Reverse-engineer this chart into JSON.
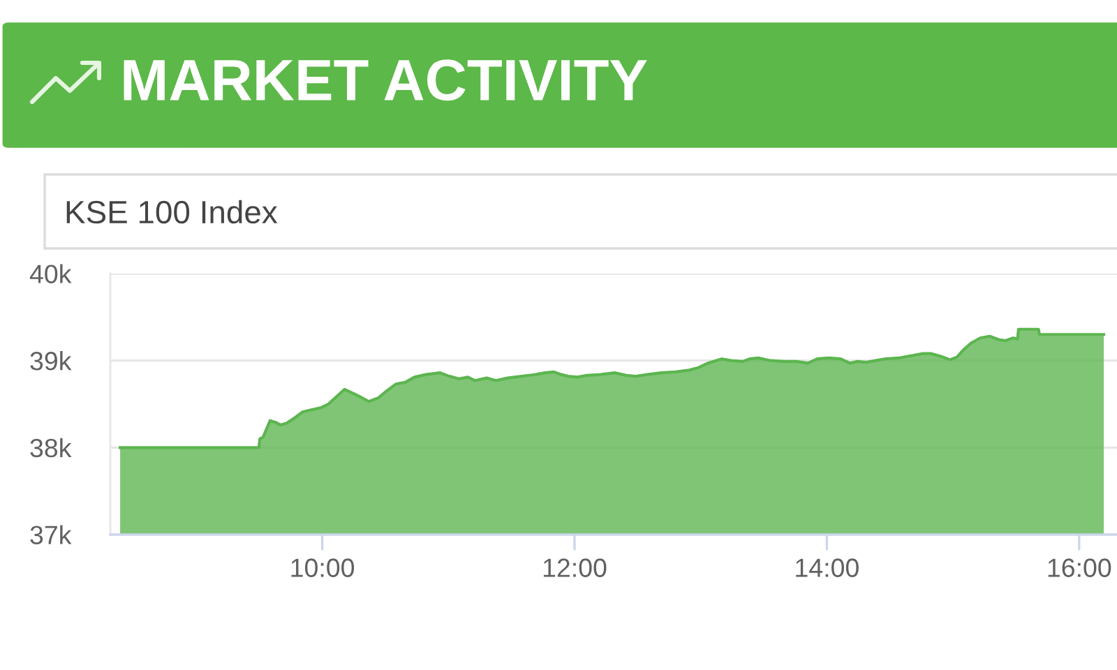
{
  "chart_data": {
    "type": "area",
    "title": "MARKET ACTIVITY",
    "subtitle": "KSE 100 Index",
    "x": [
      8.398,
      9.498,
      9.505,
      9.531,
      9.587,
      9.631,
      9.668,
      9.716,
      9.779,
      9.845,
      9.9,
      9.993,
      10.048,
      10.177,
      10.251,
      10.306,
      10.369,
      10.443,
      10.509,
      10.583,
      10.657,
      10.731,
      10.823,
      10.934,
      11.008,
      11.082,
      11.155,
      11.211,
      11.303,
      11.377,
      11.469,
      11.58,
      11.691,
      11.765,
      11.838,
      11.894,
      11.949,
      12.023,
      12.097,
      12.207,
      12.318,
      12.41,
      12.484,
      12.577,
      12.687,
      12.798,
      12.908,
      12.983,
      13.056,
      13.167,
      13.241,
      13.333,
      13.389,
      13.462,
      13.554,
      13.666,
      13.758,
      13.85,
      13.924,
      14.016,
      14.109,
      14.183,
      14.238,
      14.312,
      14.386,
      14.46,
      14.571,
      14.681,
      14.755,
      14.829,
      14.903,
      14.977,
      15.031,
      15.087,
      15.142,
      15.216,
      15.29,
      15.364,
      15.419,
      15.475,
      15.512,
      15.519,
      15.678,
      15.685,
      16.195
    ],
    "series": [
      {
        "color": "#5cb54f",
        "values": [
          38000,
          38000,
          38100,
          38120,
          38310,
          38290,
          38260,
          38280,
          38340,
          38410,
          38430,
          38460,
          38500,
          38670,
          38620,
          38580,
          38530,
          38570,
          38650,
          38730,
          38750,
          38810,
          38840,
          38860,
          38820,
          38790,
          38810,
          38770,
          38800,
          38770,
          38800,
          38820,
          38840,
          38860,
          38870,
          38840,
          38820,
          38810,
          38830,
          38840,
          38860,
          38830,
          38820,
          38840,
          38860,
          38870,
          38890,
          38920,
          38970,
          39020,
          39000,
          38990,
          39020,
          39030,
          39000,
          38990,
          38990,
          38970,
          39020,
          39030,
          39020,
          38970,
          38990,
          38980,
          39000,
          39020,
          39030,
          39060,
          39080,
          39080,
          39050,
          39010,
          39040,
          39130,
          39200,
          39260,
          39280,
          39240,
          39230,
          39260,
          39250,
          39360,
          39360,
          39300,
          39300
        ]
      }
    ],
    "xlim": [
      8.32,
      16.3
    ],
    "ylim": [
      37000,
      40000
    ],
    "xticks": [
      {
        "value": 10,
        "label": "10:00"
      },
      {
        "value": 12,
        "label": "12:00"
      },
      {
        "value": 14,
        "label": "14:00"
      },
      {
        "value": 16,
        "label": "16:00"
      }
    ],
    "yticks": [
      {
        "value": 37000,
        "label": "37k"
      },
      {
        "value": 38000,
        "label": "38k"
      },
      {
        "value": 39000,
        "label": "39k"
      },
      {
        "value": 40000,
        "label": "40k"
      }
    ],
    "grid": "y"
  }
}
